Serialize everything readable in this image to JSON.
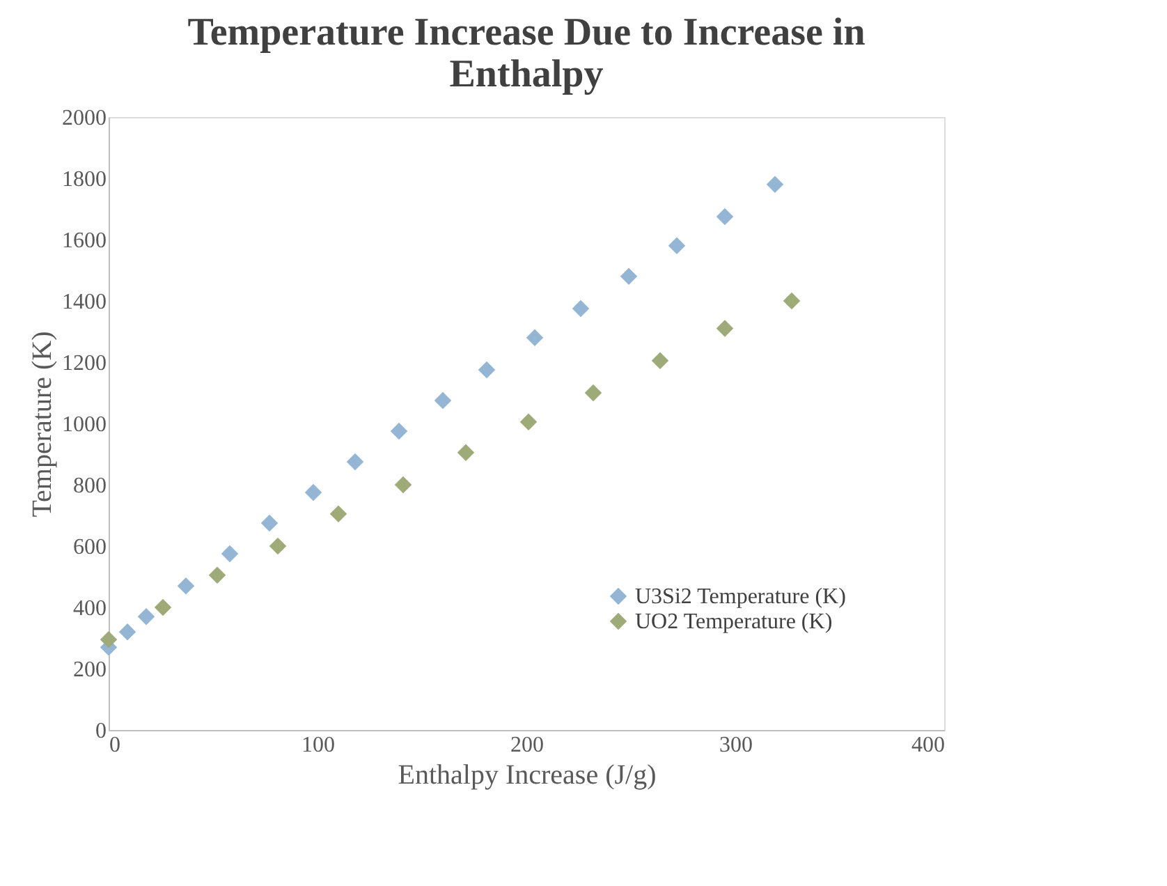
{
  "chart_data": {
    "type": "scatter",
    "title": "Temperature Increase Due to Increase in Enthalpy",
    "xlabel": "Enthalpy Increase (J/g)",
    "ylabel": "Temperature (K)",
    "xlim": [
      0,
      400
    ],
    "xticks": [
      0,
      100,
      200,
      300,
      400
    ],
    "ylim": [
      0,
      2000
    ],
    "yticks": [
      0,
      200,
      400,
      600,
      800,
      1000,
      1200,
      1400,
      1600,
      1800,
      2000
    ],
    "grid": false,
    "legend": "bottom right",
    "marker": "diamond",
    "series": [
      {
        "name": "U3Si2 Temperature (K)",
        "color": "#94b6d4",
        "x": [
          0,
          9,
          18,
          37,
          58,
          77,
          98,
          118,
          139,
          160,
          181,
          204,
          226,
          249,
          272,
          295,
          319
        ],
        "values": [
          270,
          320,
          370,
          470,
          575,
          675,
          775,
          875,
          975,
          1075,
          1175,
          1280,
          1375,
          1480,
          1580,
          1675,
          1780
        ]
      },
      {
        "name": "UO2 Temperature (K)",
        "color": "#9eaa78",
        "x": [
          0,
          26,
          52,
          81,
          110,
          141,
          171,
          201,
          232,
          264,
          295,
          327
        ],
        "values": [
          295,
          400,
          505,
          600,
          705,
          800,
          905,
          1005,
          1100,
          1205,
          1310,
          1400
        ]
      }
    ]
  }
}
